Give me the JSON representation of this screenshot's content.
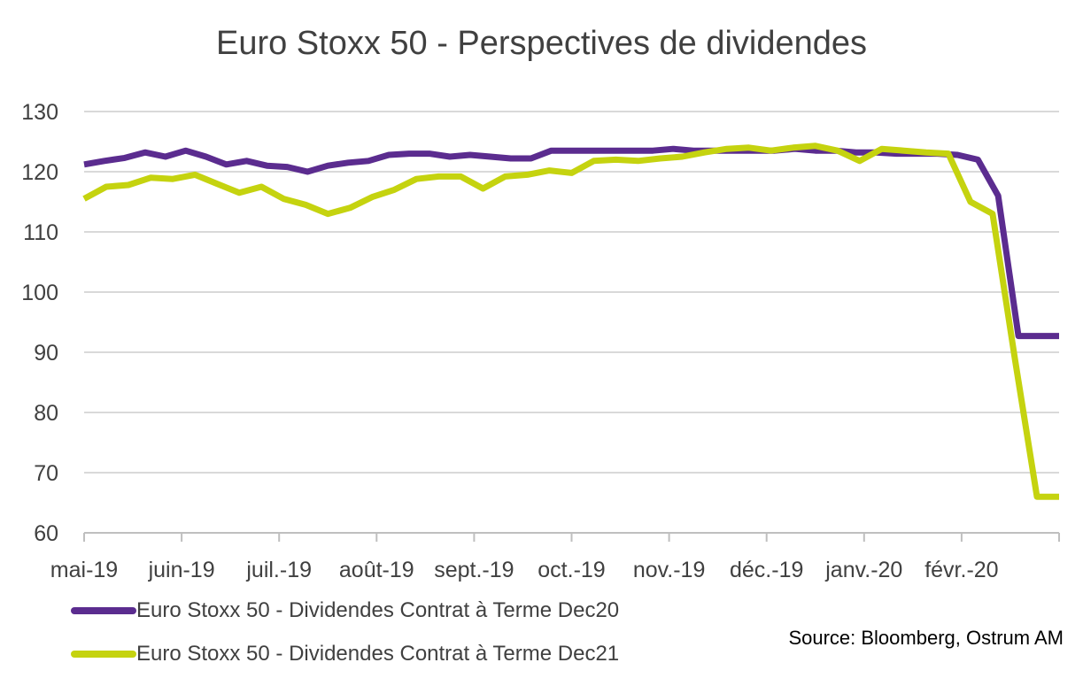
{
  "chart_data": {
    "type": "line",
    "title": "Euro Stoxx 50 -  Perspectives de dividendes",
    "xlabel": "",
    "ylabel": "",
    "ylim": [
      60,
      130
    ],
    "yticks": [
      60,
      70,
      80,
      90,
      100,
      110,
      120,
      130
    ],
    "x_tick_labels": [
      "mai-19",
      "juin-19",
      "juil.-19",
      "août-19",
      "sept.-19",
      "oct.-19",
      "nov.-19",
      "déc.-19",
      "janv.-20",
      "févr.-20"
    ],
    "grid": true,
    "legend_position": "bottom-left",
    "series": [
      {
        "name": "Euro Stoxx 50 - Dividendes Contrat à Terme Dec20",
        "color": "#5B2C8F",
        "values": [
          121.2,
          121.8,
          122.3,
          123.2,
          122.5,
          123.5,
          122.5,
          121.2,
          121.8,
          121.0,
          120.8,
          120.0,
          121.0,
          121.5,
          121.8,
          122.8,
          123.0,
          123.0,
          122.5,
          122.8,
          122.5,
          122.2,
          122.2,
          123.5,
          123.5,
          123.5,
          123.5,
          123.5,
          123.5,
          123.8,
          123.5,
          123.5,
          123.5,
          123.5,
          123.5,
          123.8,
          123.5,
          123.5,
          123.2,
          123.2,
          123.0,
          123.0,
          123.0,
          122.8,
          122.0,
          116.0,
          92.7,
          92.7,
          92.7
        ]
      },
      {
        "name": "Euro Stoxx 50 - Dividendes Contrat à Terme Dec21",
        "color": "#C5D30F",
        "values": [
          115.5,
          117.5,
          117.8,
          119.0,
          118.8,
          119.5,
          118.0,
          116.5,
          117.5,
          115.5,
          114.5,
          113.0,
          114.0,
          115.8,
          117.0,
          118.8,
          119.2,
          119.2,
          117.2,
          119.2,
          119.5,
          120.2,
          119.8,
          121.8,
          122.0,
          121.8,
          122.2,
          122.5,
          123.2,
          123.8,
          124.0,
          123.5,
          124.0,
          124.3,
          123.5,
          121.8,
          123.8,
          123.5,
          123.2,
          123.0,
          115.0,
          113.0,
          89.0,
          66.0,
          66.0
        ]
      }
    ],
    "series_end_x": [
      1,
      1
    ],
    "source": "Source: Bloomberg, Ostrum AM"
  }
}
